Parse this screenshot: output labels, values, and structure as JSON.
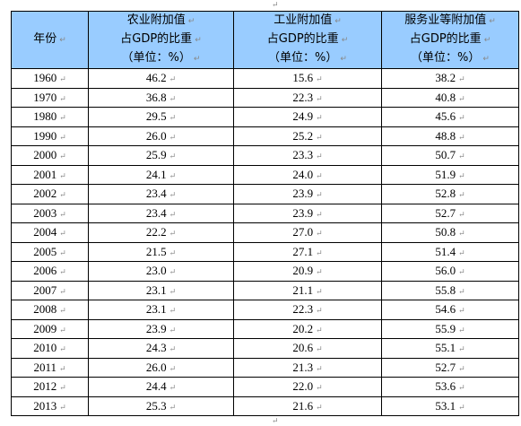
{
  "table": {
    "header": [
      [
        "年份"
      ],
      [
        "农业附加值",
        "占GDP的比重",
        "（单位：%）"
      ],
      [
        "工业附加值",
        "占GDP的比重",
        "（单位：%）"
      ],
      [
        "服务业等附加值",
        "占GDP的比重",
        "（单位：%）"
      ]
    ],
    "rows": [
      [
        "1960",
        "46.2",
        "15.6",
        "38.2"
      ],
      [
        "1970",
        "36.8",
        "22.3",
        "40.8"
      ],
      [
        "1980",
        "29.5",
        "24.9",
        "45.6"
      ],
      [
        "1990",
        "26.0",
        "25.2",
        "48.8"
      ],
      [
        "2000",
        "25.9",
        "23.3",
        "50.7"
      ],
      [
        "2001",
        "24.1",
        "24.0",
        "51.9"
      ],
      [
        "2002",
        "23.4",
        "23.9",
        "52.8"
      ],
      [
        "2003",
        "23.4",
        "23.9",
        "52.7"
      ],
      [
        "2004",
        "22.2",
        "27.0",
        "50.8"
      ],
      [
        "2005",
        "21.5",
        "27.1",
        "51.4"
      ],
      [
        "2006",
        "23.0",
        "20.9",
        "56.0"
      ],
      [
        "2007",
        "23.1",
        "21.1",
        "55.8"
      ],
      [
        "2008",
        "23.1",
        "22.3",
        "54.6"
      ],
      [
        "2009",
        "23.9",
        "20.2",
        "55.9"
      ],
      [
        "2010",
        "24.3",
        "20.6",
        "55.1"
      ],
      [
        "2011",
        "26.0",
        "21.3",
        "52.7"
      ],
      [
        "2012",
        "24.4",
        "22.0",
        "53.6"
      ],
      [
        "2013",
        "25.3",
        "21.6",
        "53.1"
      ]
    ]
  }
}
